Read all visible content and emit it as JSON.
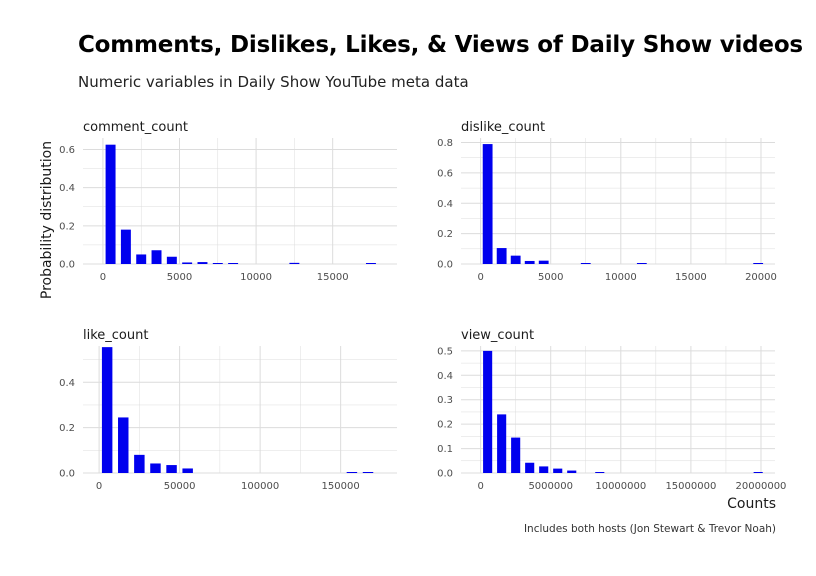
{
  "title": "Comments, Dislikes, Likes, & Views of Daily Show videos",
  "subtitle": "Numeric variables in Daily Show YouTube meta data",
  "caption": "Includes both hosts (Jon Stewart & Trevor Noah)",
  "colors": {
    "bar": "#0000ee",
    "grid": "#dcdcdc"
  },
  "chart_data": {
    "type": "bar",
    "ylabel": "Probability distribution",
    "xlabel": "Counts",
    "grid": true,
    "panels": [
      {
        "name": "comment_count",
        "xlim": [
          -1300,
          19200
        ],
        "ylim": [
          0,
          0.66
        ],
        "xticks": [
          0,
          5000,
          10000,
          15000
        ],
        "xtick_labels": [
          "0",
          "5000",
          "10000",
          "15000"
        ],
        "yticks": [
          0,
          0.2,
          0.4,
          0.6
        ],
        "ytick_labels": [
          "0.0",
          "0.2",
          "0.4",
          "0.6"
        ],
        "bar_width": 650,
        "bars": [
          {
            "x": 500,
            "y": 0.625
          },
          {
            "x": 1500,
            "y": 0.18
          },
          {
            "x": 2500,
            "y": 0.05
          },
          {
            "x": 3500,
            "y": 0.072
          },
          {
            "x": 4500,
            "y": 0.038
          },
          {
            "x": 5500,
            "y": 0.008
          },
          {
            "x": 6500,
            "y": 0.01
          },
          {
            "x": 7500,
            "y": 0.005
          },
          {
            "x": 8500,
            "y": 0.005
          },
          {
            "x": 12500,
            "y": 0.006
          },
          {
            "x": 17500,
            "y": 0.005
          }
        ]
      },
      {
        "name": "dislike_count",
        "xlim": [
          -1400,
          21000
        ],
        "ylim": [
          0,
          0.83
        ],
        "xticks": [
          0,
          5000,
          10000,
          15000,
          20000
        ],
        "xtick_labels": [
          "0",
          "5000",
          "10000",
          "15000",
          "20000"
        ],
        "yticks": [
          0,
          0.2,
          0.4,
          0.6,
          0.8
        ],
        "ytick_labels": [
          "0.0",
          "0.2",
          "0.4",
          "0.6",
          "0.8"
        ],
        "bar_width": 700,
        "bars": [
          {
            "x": 500,
            "y": 0.79
          },
          {
            "x": 1500,
            "y": 0.105
          },
          {
            "x": 2500,
            "y": 0.055
          },
          {
            "x": 3500,
            "y": 0.02
          },
          {
            "x": 4500,
            "y": 0.022
          },
          {
            "x": 7500,
            "y": 0.004
          },
          {
            "x": 11500,
            "y": 0.004
          },
          {
            "x": 19800,
            "y": 0.004
          }
        ]
      },
      {
        "name": "like_count",
        "xlim": [
          -10000,
          185000
        ],
        "ylim": [
          0,
          0.56
        ],
        "xticks": [
          0,
          50000,
          100000,
          150000
        ],
        "xtick_labels": [
          "0",
          "50000",
          "100000",
          "150000"
        ],
        "yticks": [
          0,
          0.2,
          0.4
        ],
        "ytick_labels": [
          "0.0",
          "0.2",
          "0.4"
        ],
        "bar_width": 6500,
        "bars": [
          {
            "x": 5000,
            "y": 0.555
          },
          {
            "x": 15000,
            "y": 0.245
          },
          {
            "x": 25000,
            "y": 0.08
          },
          {
            "x": 35000,
            "y": 0.042
          },
          {
            "x": 45000,
            "y": 0.035
          },
          {
            "x": 55000,
            "y": 0.02
          },
          {
            "x": 157000,
            "y": 0.004
          },
          {
            "x": 167000,
            "y": 0.004
          }
        ]
      },
      {
        "name": "view_count",
        "xlim": [
          -1400000,
          21000000
        ],
        "ylim": [
          0,
          0.52
        ],
        "xticks": [
          0,
          5000000,
          10000000,
          15000000,
          20000000
        ],
        "xtick_labels": [
          "0",
          "5000000",
          "10000000",
          "15000000",
          "20000000"
        ],
        "yticks": [
          0,
          0.1,
          0.2,
          0.3,
          0.4,
          0.5
        ],
        "ytick_labels": [
          "0.0",
          "0.1",
          "0.2",
          "0.3",
          "0.4",
          "0.5"
        ],
        "bar_width": 650000,
        "bars": [
          {
            "x": 500000,
            "y": 0.5
          },
          {
            "x": 1500000,
            "y": 0.24
          },
          {
            "x": 2500000,
            "y": 0.145
          },
          {
            "x": 3500000,
            "y": 0.042
          },
          {
            "x": 4500000,
            "y": 0.027
          },
          {
            "x": 5500000,
            "y": 0.018
          },
          {
            "x": 6500000,
            "y": 0.01
          },
          {
            "x": 8500000,
            "y": 0.004
          },
          {
            "x": 19800000,
            "y": 0.004
          }
        ]
      }
    ]
  }
}
